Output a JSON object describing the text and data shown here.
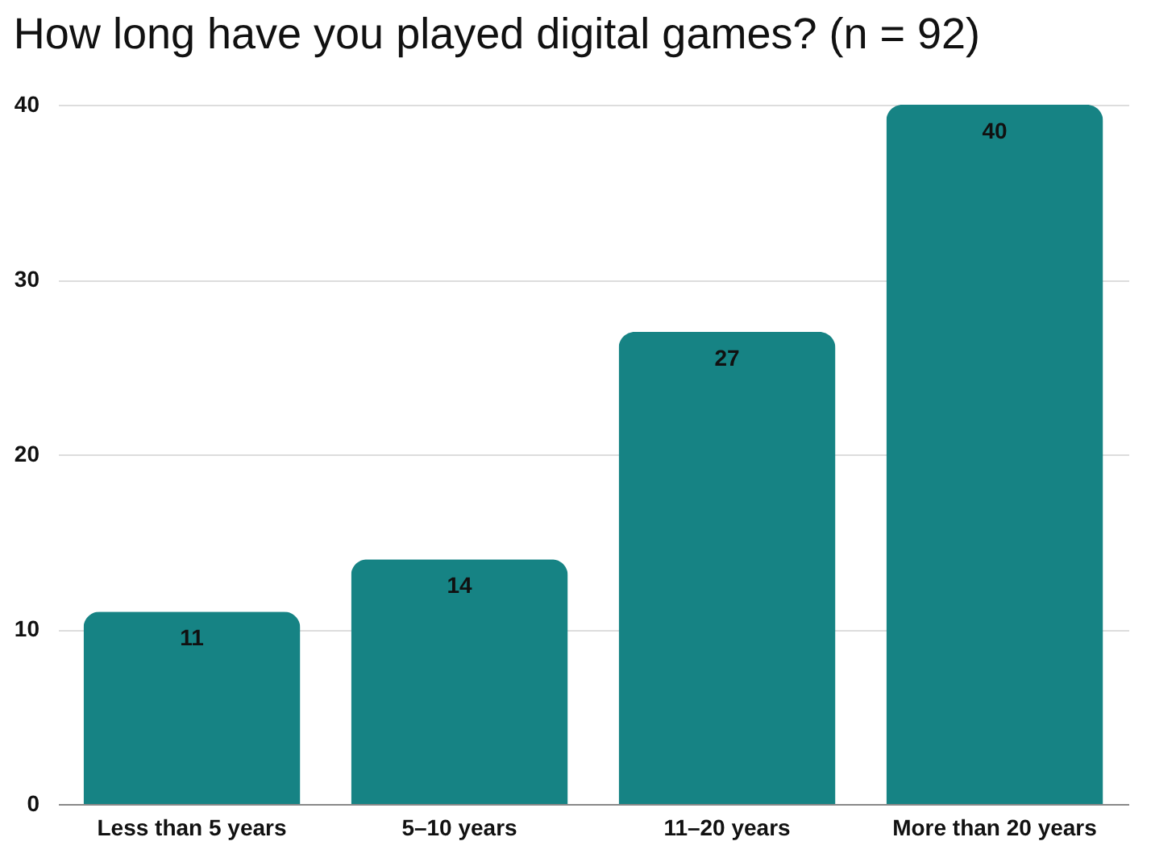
{
  "chart_data": {
    "type": "bar",
    "title": "How long have you played digital games? (n = 92)",
    "categories": [
      "Less than 5 years",
      "5–10 years",
      "11–20 years",
      "More than 20 years"
    ],
    "values": [
      11,
      14,
      27,
      40
    ],
    "color": "#168384",
    "ylim": [
      0,
      40
    ],
    "yticks": [
      0,
      10,
      20,
      30,
      40
    ],
    "grid": "y",
    "data_labels": true
  }
}
